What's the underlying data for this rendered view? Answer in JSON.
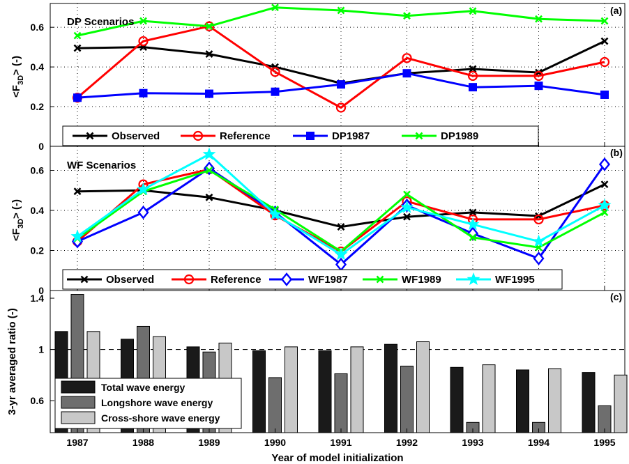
{
  "chart_data": [
    {
      "panel_label": "(a)",
      "title": "DP Scenarios",
      "type": "line",
      "ylabel": "<F3D> (-)",
      "ylabel_parts": [
        "<F",
        "3D",
        "> (-)"
      ],
      "ylim": [
        0,
        0.72
      ],
      "yticks": [
        "0",
        "0.2",
        "0.4",
        "0.6"
      ],
      "grid": true,
      "legend_position": "bottom",
      "x": [
        1987,
        1988,
        1989,
        1990,
        1991,
        1992,
        1993,
        1994,
        1995
      ],
      "series": [
        {
          "name": "Observed",
          "color": "#000000",
          "marker": "x",
          "values": [
            0.495,
            0.5,
            0.465,
            0.4,
            0.318,
            0.368,
            0.39,
            0.372,
            0.53
          ]
        },
        {
          "name": "Reference",
          "color": "#ff0000",
          "marker": "circle",
          "values": [
            0.245,
            0.53,
            0.605,
            0.375,
            0.195,
            0.445,
            0.355,
            0.355,
            0.425
          ]
        },
        {
          "name": "DP1987",
          "color": "#0000ff",
          "marker": "square",
          "values": [
            0.245,
            0.268,
            0.265,
            0.275,
            0.312,
            0.368,
            0.298,
            0.305,
            0.26
          ]
        },
        {
          "name": "DP1989",
          "color": "#00ff00",
          "marker": "x",
          "values": [
            0.558,
            0.632,
            0.605,
            0.7,
            0.685,
            0.658,
            0.682,
            0.642,
            0.632
          ]
        }
      ]
    },
    {
      "panel_label": "(b)",
      "title": "WF Scenarios",
      "type": "line",
      "ylabel": "<F3D> (-)",
      "ylabel_parts": [
        "<F",
        "3D",
        "> (-)"
      ],
      "ylim": [
        0,
        0.72
      ],
      "yticks": [
        "0",
        "0.2",
        "0.4",
        "0.6"
      ],
      "grid": true,
      "legend_position": "bottom",
      "x": [
        1987,
        1988,
        1989,
        1990,
        1991,
        1992,
        1993,
        1994,
        1995
      ],
      "series": [
        {
          "name": "Observed",
          "color": "#000000",
          "marker": "x",
          "values": [
            0.495,
            0.5,
            0.465,
            0.4,
            0.318,
            0.368,
            0.39,
            0.372,
            0.53
          ]
        },
        {
          "name": "Reference",
          "color": "#ff0000",
          "marker": "circle",
          "values": [
            0.245,
            0.53,
            0.605,
            0.375,
            0.195,
            0.445,
            0.355,
            0.355,
            0.425
          ]
        },
        {
          "name": "WF1987",
          "color": "#0000ff",
          "marker": "diamond",
          "values": [
            0.245,
            0.39,
            0.61,
            0.39,
            0.13,
            0.425,
            0.285,
            0.16,
            0.63
          ]
        },
        {
          "name": "WF1989",
          "color": "#00ff00",
          "marker": "x",
          "values": [
            0.26,
            0.495,
            0.6,
            0.405,
            0.195,
            0.48,
            0.265,
            0.215,
            0.39
          ]
        },
        {
          "name": "WF1995",
          "color": "#00ffff",
          "marker": "star",
          "values": [
            0.27,
            0.505,
            0.68,
            0.38,
            0.18,
            0.415,
            0.33,
            0.245,
            0.425
          ]
        }
      ]
    },
    {
      "panel_label": "(c)",
      "type": "bar",
      "ylabel": "3-yr averaged ratio (-)",
      "xlabel": "Year of model initialization",
      "ylim": [
        0.35,
        1.46
      ],
      "yticks": [
        "0.6",
        "1",
        "1.4"
      ],
      "reference_line": 1,
      "legend_position": "bottom-left",
      "categories": [
        "1987",
        "1988",
        "1989",
        "1990",
        "1991",
        "1992",
        "1993",
        "1994",
        "1995"
      ],
      "series": [
        {
          "name": "Total wave energy",
          "color": "#1a1a1a",
          "values": [
            1.14,
            1.08,
            1.02,
            0.99,
            0.99,
            1.04,
            0.86,
            0.84,
            0.82
          ]
        },
        {
          "name": "Longshore wave energy",
          "color": "#6e6e6e",
          "values": [
            1.43,
            1.18,
            0.98,
            0.78,
            0.81,
            0.87,
            0.43,
            0.43,
            0.56
          ]
        },
        {
          "name": "Cross-shore wave energy",
          "color": "#c8c8c8",
          "values": [
            1.14,
            1.1,
            1.05,
            1.02,
            1.02,
            1.06,
            0.88,
            0.85,
            0.8
          ]
        }
      ]
    }
  ]
}
